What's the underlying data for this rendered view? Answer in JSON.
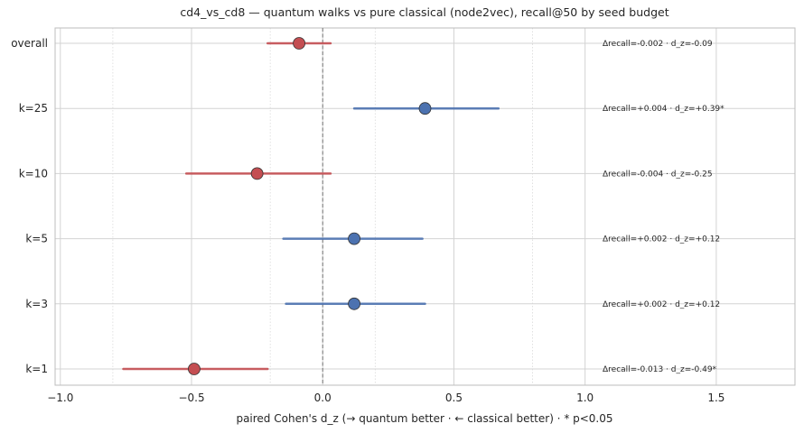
{
  "chart_data": {
    "type": "forest",
    "title": "cd4_vs_cd8 — quantum walks vs pure classical (node2vec), recall@50 by seed budget",
    "xlabel": "paired Cohen's d_z  (→ quantum better · ← classical better)   ·  * p<0.05",
    "xlim": [
      -1.02,
      1.8
    ],
    "xticks": [
      -1.0,
      -0.5,
      0.0,
      0.5,
      1.0,
      1.5
    ],
    "xtick_labels": [
      "−1.0",
      "−0.5",
      "0.0",
      "0.5",
      "1.0",
      "1.5"
    ],
    "minor_xticks": [
      -0.8,
      -0.2,
      0.2,
      0.8
    ],
    "reference_line": 0.0,
    "grid": true,
    "colors": {
      "quantum_better": "#4c72b0",
      "classical_better": "#c44e52"
    },
    "rows": [
      {
        "label": "overall",
        "d": -0.09,
        "ci": [
          -0.21,
          0.03
        ],
        "annotation": "Δrecall=-0.002 · d_z=-0.09",
        "direction": "classical_better"
      },
      {
        "label": "k=25",
        "d": 0.39,
        "ci": [
          0.12,
          0.67
        ],
        "annotation": "Δrecall=+0.004 · d_z=+0.39*",
        "direction": "quantum_better"
      },
      {
        "label": "k=10",
        "d": -0.25,
        "ci": [
          -0.52,
          0.03
        ],
        "annotation": "Δrecall=-0.004 · d_z=-0.25",
        "direction": "classical_better"
      },
      {
        "label": "k=5",
        "d": 0.12,
        "ci": [
          -0.15,
          0.38
        ],
        "annotation": "Δrecall=+0.002 · d_z=+0.12",
        "direction": "quantum_better"
      },
      {
        "label": "k=3",
        "d": 0.12,
        "ci": [
          -0.14,
          0.39
        ],
        "annotation": "Δrecall=+0.002 · d_z=+0.12",
        "direction": "quantum_better"
      },
      {
        "label": "k=1",
        "d": -0.49,
        "ci": [
          -0.76,
          -0.21
        ],
        "annotation": "Δrecall=-0.013 · d_z=-0.49*",
        "direction": "classical_better"
      }
    ]
  }
}
